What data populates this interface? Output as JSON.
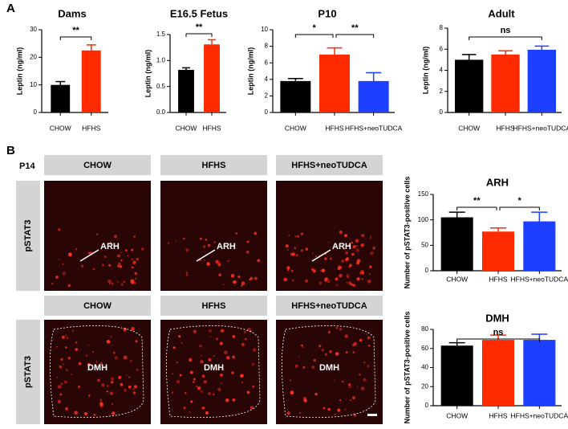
{
  "chart_data": [
    {
      "type": "bar",
      "title": "Dams",
      "y_label": "Leptin (ng/ml)",
      "categories": [
        "CHOW",
        "HFHS"
      ],
      "values": [
        10,
        22.5
      ],
      "errors": [
        1.2,
        2
      ],
      "colors": [
        "#000000",
        "#ff2a00"
      ],
      "ylim": [
        0,
        30
      ],
      "yticks": [
        0,
        10,
        20,
        30
      ],
      "annotations": [
        "**"
      ]
    },
    {
      "type": "bar",
      "title": "E16.5 Fetus",
      "y_label": "Leptin (ng/ml)",
      "categories": [
        "CHOW",
        "HFHS"
      ],
      "values": [
        0.82,
        1.31
      ],
      "errors": [
        0.04,
        0.09
      ],
      "colors": [
        "#000000",
        "#ff2a00"
      ],
      "ylim": [
        0,
        1.5
      ],
      "yticks": [
        {
          "value": 0,
          "label": "0.0"
        },
        0.5,
        {
          "value": 1,
          "label": "1.0"
        },
        1.5
      ],
      "annotations": [
        "**"
      ]
    },
    {
      "type": "bar",
      "title": "P10",
      "y_label": "Leptin (ng/ml)",
      "categories": [
        "CHOW",
        "HFHS",
        "HFHS+neoTUDCA"
      ],
      "values": [
        3.8,
        7.0,
        3.8
      ],
      "errors": [
        0.3,
        0.8,
        1.0
      ],
      "colors": [
        "#000000",
        "#ff2a00",
        "#1d3fff"
      ],
      "ylim": [
        0,
        10
      ],
      "yticks": [
        0,
        2,
        4,
        6,
        8,
        10
      ],
      "annotations": [
        "*",
        "**"
      ]
    },
    {
      "type": "bar",
      "title": "Adult",
      "y_label": "Leptin (ng/ml)",
      "categories": [
        "CHOW",
        "HFHS",
        "HFHS+neoTUDCA"
      ],
      "values": [
        5.0,
        5.5,
        5.95
      ],
      "errors": [
        0.5,
        0.35,
        0.35
      ],
      "colors": [
        "#000000",
        "#ff2a00",
        "#1d3fff"
      ],
      "ylim": [
        0,
        8
      ],
      "yticks": [
        0,
        2,
        4,
        6,
        8
      ],
      "annotations": [
        "ns"
      ]
    },
    {
      "type": "bar",
      "title": "ARH",
      "y_label": "Number of pSTAT3-positive cells",
      "categories": [
        "CHOW",
        "HFHS",
        "HFHS+neoTUDCA"
      ],
      "values": [
        105,
        77,
        97
      ],
      "errors": [
        10,
        7,
        18
      ],
      "colors": [
        "#000000",
        "#ff2a00",
        "#1d3fff"
      ],
      "ylim": [
        0,
        150
      ],
      "yticks": [
        0,
        50,
        100,
        150
      ],
      "annotations": [
        "**",
        "*"
      ]
    },
    {
      "type": "bar",
      "title": "DMH",
      "y_label": "Number of pSTAT3-positive cells",
      "categories": [
        "CHOW",
        "HFHS",
        "HFHS+neoTUDCA"
      ],
      "values": [
        63,
        69,
        69
      ],
      "errors": [
        3,
        5,
        6
      ],
      "colors": [
        "#000000",
        "#ff2a00",
        "#1d3fff"
      ],
      "ylim": [
        0,
        80
      ],
      "yticks": [
        0,
        20,
        40,
        60,
        80
      ],
      "annotations": [
        "ns"
      ]
    }
  ],
  "panels": {
    "a": "A",
    "b": "B",
    "age": "P14",
    "rows": [
      {
        "stain": "pSTAT3",
        "columns": [
          "CHOW",
          "HFHS",
          "HFHS+neoTUDCA"
        ],
        "region": "ARH"
      },
      {
        "stain": "pSTAT3",
        "columns": [
          "CHOW",
          "HFHS",
          "HFHS+neoTUDCA"
        ],
        "region": "DMH"
      }
    ]
  }
}
